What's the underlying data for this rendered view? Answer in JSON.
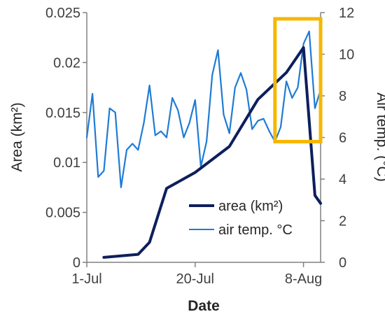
{
  "chart_data": {
    "type": "line",
    "xlabel": "Date",
    "ylabel_left": "Area (km²)",
    "ylabel_right": "Air temp. (°C)",
    "x_ticks": [
      "1-Jul",
      "20-Jul",
      "8-Aug"
    ],
    "x_tick_day_index": [
      0,
      19,
      38
    ],
    "x_range_days": [
      0,
      41
    ],
    "y_left_ticks": [
      "0",
      "0.005",
      "0.01",
      "0.015",
      "0.02",
      "0.025"
    ],
    "y_left_range": [
      0,
      0.025
    ],
    "y_right_ticks": [
      "0",
      "2",
      "4",
      "6",
      "8",
      "10",
      "12"
    ],
    "y_right_range": [
      0,
      12
    ],
    "grid": false,
    "legend_position": "bottom-right",
    "series": [
      {
        "name": "area (km²)",
        "axis": "left",
        "color": "#0d1f5c",
        "points": [
          {
            "x": "4-Jul",
            "y": 0.0005
          },
          {
            "x": "10-Jul",
            "y": 0.0008
          },
          {
            "x": "12-Jul",
            "y": 0.002
          },
          {
            "x": "15-Jul",
            "y": 0.0074
          },
          {
            "x": "20-Jul",
            "y": 0.009
          },
          {
            "x": "26-Jul",
            "y": 0.0116
          },
          {
            "x": "31-Jul",
            "y": 0.0163
          },
          {
            "x": "5-Aug",
            "y": 0.019
          },
          {
            "x": "8-Aug",
            "y": 0.0215
          },
          {
            "x": "10-Aug",
            "y": 0.0067
          },
          {
            "x": "11-Aug",
            "y": 0.0059
          }
        ]
      },
      {
        "name": "air temp. °C",
        "axis": "right",
        "color": "#1f7bd6",
        "points": [
          {
            "x": "1-Jul",
            "y": 6.0
          },
          {
            "x": "2-Jul",
            "y": 8.1
          },
          {
            "x": "3-Jul",
            "y": 4.1
          },
          {
            "x": "4-Jul",
            "y": 4.4
          },
          {
            "x": "5-Jul",
            "y": 7.4
          },
          {
            "x": "6-Jul",
            "y": 7.2
          },
          {
            "x": "7-Jul",
            "y": 3.6
          },
          {
            "x": "8-Jul",
            "y": 5.4
          },
          {
            "x": "9-Jul",
            "y": 5.7
          },
          {
            "x": "10-Jul",
            "y": 5.4
          },
          {
            "x": "11-Jul",
            "y": 6.7
          },
          {
            "x": "12-Jul",
            "y": 8.5
          },
          {
            "x": "13-Jul",
            "y": 6.1
          },
          {
            "x": "14-Jul",
            "y": 6.3
          },
          {
            "x": "15-Jul",
            "y": 6.0
          },
          {
            "x": "16-Jul",
            "y": 7.9
          },
          {
            "x": "17-Jul",
            "y": 7.3
          },
          {
            "x": "18-Jul",
            "y": 6.0
          },
          {
            "x": "19-Jul",
            "y": 6.7
          },
          {
            "x": "20-Jul",
            "y": 7.8
          },
          {
            "x": "21-Jul",
            "y": 4.6
          },
          {
            "x": "22-Jul",
            "y": 5.8
          },
          {
            "x": "23-Jul",
            "y": 9.0
          },
          {
            "x": "24-Jul",
            "y": 10.2
          },
          {
            "x": "25-Jul",
            "y": 7.1
          },
          {
            "x": "26-Jul",
            "y": 6.2
          },
          {
            "x": "27-Jul",
            "y": 8.4
          },
          {
            "x": "28-Jul",
            "y": 9.1
          },
          {
            "x": "29-Jul",
            "y": 8.3
          },
          {
            "x": "30-Jul",
            "y": 6.4
          },
          {
            "x": "31-Jul",
            "y": 6.8
          },
          {
            "x": "1-Aug",
            "y": 6.9
          },
          {
            "x": "2-Aug",
            "y": 6.3
          },
          {
            "x": "3-Aug",
            "y": 5.8
          },
          {
            "x": "4-Aug",
            "y": 6.5
          },
          {
            "x": "5-Aug",
            "y": 8.7
          },
          {
            "x": "6-Aug",
            "y": 7.9
          },
          {
            "x": "7-Aug",
            "y": 8.4
          },
          {
            "x": "8-Aug",
            "y": 10.5
          },
          {
            "x": "9-Aug",
            "y": 11.1
          },
          {
            "x": "10-Aug",
            "y": 7.4
          },
          {
            "x": "11-Aug",
            "y": 8.3
          }
        ]
      }
    ],
    "highlight": {
      "color": "#f5b700",
      "x_range": [
        "3-Aug",
        "11-Aug"
      ],
      "y_right_range": [
        5.8,
        11.7
      ]
    }
  }
}
